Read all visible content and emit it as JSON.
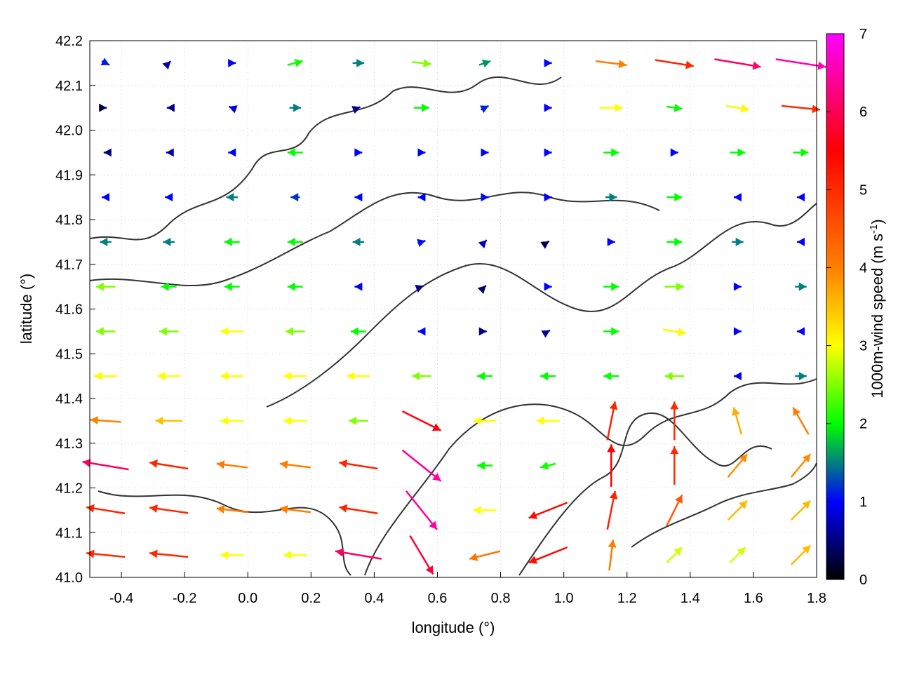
{
  "chart_data": {
    "type": "vector-field",
    "title": "",
    "xlabel": "longitude (°)",
    "ylabel": "latitude (°)",
    "xlim": [
      -0.5,
      1.8
    ],
    "ylim": [
      41.0,
      42.2
    ],
    "xticks": [
      "-0.4",
      "-0.2",
      "0.0",
      "0.2",
      "0.4",
      "0.6",
      "0.8",
      "1.0",
      "1.2",
      "1.4",
      "1.6",
      "1.8"
    ],
    "yticks": [
      "41.0",
      "41.1",
      "41.2",
      "41.3",
      "41.4",
      "41.5",
      "41.6",
      "41.7",
      "41.8",
      "41.9",
      "42.0",
      "42.1",
      "42.2"
    ],
    "grid": true,
    "colorbar": {
      "label": "1000m-wind speed (m s",
      "label_sup": "-1",
      "label_end": ")",
      "range": [
        0,
        7
      ],
      "ticks": [
        "0",
        "1",
        "2",
        "3",
        "4",
        "5",
        "6",
        "7"
      ],
      "colors": [
        "#000000",
        "#0000ff",
        "#00ff00",
        "#ffff00",
        "#ff8000",
        "#ff0000",
        "#ff00ff"
      ],
      "stops": [
        0,
        1,
        2,
        3,
        4,
        5.5,
        7
      ]
    },
    "grid_lons": [
      -0.45,
      -0.25,
      -0.05,
      0.15,
      0.35,
      0.55,
      0.75,
      0.95,
      1.15,
      1.35,
      1.55,
      1.75
    ],
    "grid_lats": [
      42.15,
      42.05,
      41.95,
      41.85,
      41.75,
      41.65,
      41.55,
      41.45,
      41.35,
      41.25,
      41.15,
      41.05
    ],
    "vectors_uv": [
      [
        [
          1,
          -0.5
        ],
        [
          0.5,
          0.5
        ],
        [
          1,
          0
        ],
        [
          2,
          0.5
        ],
        [
          1.5,
          0
        ],
        [
          2.5,
          -0.3
        ],
        [
          1.5,
          0.5
        ],
        [
          1,
          0
        ],
        [
          4,
          -0.5
        ],
        [
          5,
          -0.8
        ],
        [
          6,
          -1
        ],
        [
          6.5,
          -1
        ]
      ],
      [
        [
          0.3,
          0
        ],
        [
          -0.5,
          0
        ],
        [
          -0.8,
          0.3
        ],
        [
          1.5,
          0
        ],
        [
          0.5,
          0.2
        ],
        [
          2,
          0
        ],
        [
          1,
          0.5
        ],
        [
          1,
          0
        ],
        [
          3,
          0
        ],
        [
          2,
          -0.3
        ],
        [
          3,
          -0.5
        ],
        [
          5,
          -0.5
        ]
      ],
      [
        [
          -0.5,
          0
        ],
        [
          -0.7,
          0
        ],
        [
          -1,
          0
        ],
        [
          -2,
          0
        ],
        [
          1,
          0
        ],
        [
          1,
          0
        ],
        [
          1,
          0
        ],
        [
          1,
          0
        ],
        [
          2,
          0
        ],
        [
          1,
          0
        ],
        [
          2,
          0
        ],
        [
          2,
          0
        ]
      ],
      [
        [
          -1,
          0
        ],
        [
          -1,
          0
        ],
        [
          -1.5,
          0
        ],
        [
          -1.2,
          0
        ],
        [
          -1,
          0
        ],
        [
          -1,
          0
        ],
        [
          1,
          0
        ],
        [
          1,
          0
        ],
        [
          1.5,
          0
        ],
        [
          2,
          0
        ],
        [
          -1,
          0
        ],
        [
          -1,
          0
        ]
      ],
      [
        [
          -1.5,
          0
        ],
        [
          -1.5,
          0
        ],
        [
          -2,
          0
        ],
        [
          -2,
          0
        ],
        [
          -1.5,
          0
        ],
        [
          1,
          0.3
        ],
        [
          0.5,
          0.5
        ],
        [
          0.3,
          0.2
        ],
        [
          1,
          0
        ],
        [
          2,
          0
        ],
        [
          1.5,
          0
        ],
        [
          -1,
          0
        ]
      ],
      [
        [
          -2.5,
          0
        ],
        [
          -2,
          0
        ],
        [
          -2,
          0
        ],
        [
          -2,
          0
        ],
        [
          -1,
          0
        ],
        [
          0.5,
          0.2
        ],
        [
          0.3,
          0.3
        ],
        [
          1,
          0
        ],
        [
          2,
          0
        ],
        [
          2.5,
          0
        ],
        [
          1,
          0
        ],
        [
          1.5,
          0
        ]
      ],
      [
        [
          -2.5,
          0
        ],
        [
          -2.5,
          0
        ],
        [
          -3,
          0
        ],
        [
          -2.5,
          0
        ],
        [
          -2,
          0
        ],
        [
          -1,
          0
        ],
        [
          0.5,
          0
        ],
        [
          0.5,
          0.3
        ],
        [
          2,
          0
        ],
        [
          3,
          -0.5
        ],
        [
          1,
          0
        ],
        [
          -1,
          0
        ]
      ],
      [
        [
          -3,
          0
        ],
        [
          -3,
          0
        ],
        [
          -3,
          0
        ],
        [
          -3,
          0
        ],
        [
          -3,
          0
        ],
        [
          -2.5,
          0
        ],
        [
          -2,
          0
        ],
        [
          -2,
          0
        ],
        [
          -2,
          0
        ],
        [
          -2.5,
          0
        ],
        [
          -1,
          0
        ],
        [
          1.5,
          0
        ]
      ],
      [
        [
          -4,
          0.3
        ],
        [
          -3.5,
          0
        ],
        [
          -3,
          0
        ],
        [
          -3,
          0
        ],
        [
          -2.5,
          0
        ],
        [
          5,
          -2.5
        ],
        [
          -3,
          0
        ],
        [
          -3,
          0
        ],
        [
          1,
          5
        ],
        [
          0,
          5
        ],
        [
          -1,
          3.5
        ],
        [
          -2,
          3.5
        ]
      ],
      [
        [
          -6,
          1
        ],
        [
          -5,
          0.8
        ],
        [
          -4,
          0.5
        ],
        [
          -4,
          0.5
        ],
        [
          -5,
          0.8
        ],
        [
          5,
          -4
        ],
        [
          -2,
          0
        ],
        [
          -2,
          -0.5
        ],
        [
          0,
          5.5
        ],
        [
          0,
          5
        ],
        [
          2.5,
          3
        ],
        [
          2.5,
          3
        ]
      ],
      [
        [
          -5,
          0.8
        ],
        [
          -5,
          0.7
        ],
        [
          -4,
          0.5
        ],
        [
          -4,
          0.5
        ],
        [
          -5,
          0.8
        ],
        [
          4,
          -5
        ],
        [
          -3,
          0
        ],
        [
          -5,
          -2
        ],
        [
          1,
          5
        ],
        [
          2,
          4
        ],
        [
          2.5,
          2.5
        ],
        [
          2.5,
          2.5
        ]
      ],
      [
        [
          -5,
          0.5
        ],
        [
          -5,
          0.5
        ],
        [
          -3,
          0
        ],
        [
          -3,
          0
        ],
        [
          -6,
          1
        ],
        [
          3,
          -5
        ],
        [
          -4,
          -1
        ],
        [
          -5,
          -2
        ],
        [
          0.5,
          4
        ],
        [
          2,
          2
        ],
        [
          2,
          2
        ],
        [
          2.5,
          2.5
        ]
      ]
    ]
  }
}
